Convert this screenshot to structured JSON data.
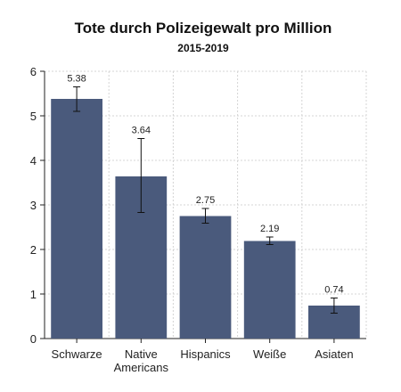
{
  "chart_data": {
    "type": "bar",
    "title": "Tote durch Polizeigewalt pro Million",
    "subtitle": "2015-2019",
    "xlabel": "",
    "ylabel": "",
    "ylim": [
      0,
      6
    ],
    "yticks": [
      0,
      1,
      2,
      3,
      4,
      5,
      6
    ],
    "grid": true,
    "categories": [
      [
        "Schwarze"
      ],
      [
        "Native",
        "Americans"
      ],
      [
        "Hispanics"
      ],
      [
        "Weiße"
      ],
      [
        "Asiaten"
      ]
    ],
    "values": [
      5.38,
      3.64,
      2.75,
      2.19,
      0.74
    ],
    "value_labels": [
      "5.38",
      "3.64",
      "2.75",
      "2.19",
      "0.74"
    ],
    "error_low": [
      5.1,
      2.83,
      2.59,
      2.11,
      0.57
    ],
    "error_high": [
      5.65,
      4.49,
      2.92,
      2.28,
      0.91
    ],
    "bar_color": "#4a5a7c",
    "error_color": "#111111"
  }
}
